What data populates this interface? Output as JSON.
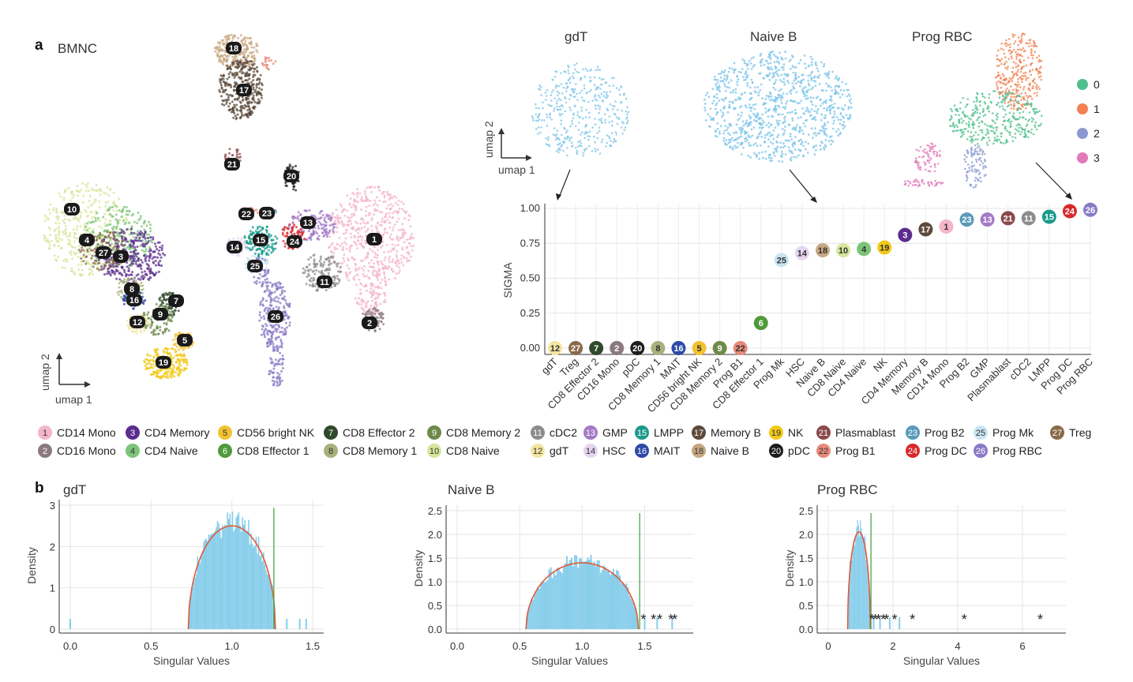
{
  "panel_a": {
    "label": "a",
    "title": "BMNC",
    "axis_x": "umap 1",
    "axis_y": "umap 2",
    "cluster_numbers_on_umap": [
      "18",
      "17",
      "21",
      "20",
      "22",
      "23",
      "10",
      "4",
      "27",
      "3",
      "13",
      "1",
      "15",
      "24",
      "14",
      "25",
      "11",
      "8",
      "16",
      "7",
      "9",
      "12",
      "5",
      "26",
      "2",
      "19"
    ],
    "small_umaps": [
      {
        "title": "gdT"
      },
      {
        "title": "Naive B"
      },
      {
        "title": "Prog RBC"
      }
    ],
    "small_axis_x": "umap 1",
    "small_axis_y": "umap 2",
    "prog_rbc_legend": [
      {
        "label": "0",
        "color": "#4fbf8f"
      },
      {
        "label": "1",
        "color": "#f28050"
      },
      {
        "label": "2",
        "color": "#8a9ad0"
      },
      {
        "label": "3",
        "color": "#e07ab8"
      }
    ]
  },
  "colors": {
    "1": "#f4b6c8",
    "2": "#8a7a80",
    "3": "#5b2d8e",
    "4": "#7cc47a",
    "5": "#f2c230",
    "6": "#4f9a3a",
    "7": "#2f4a2a",
    "8": "#a9b07a",
    "9": "#6e8a4a",
    "10": "#d6e69a",
    "11": "#8c8c8c",
    "12": "#f2e5a0",
    "13": "#a37ac6",
    "14": "#e5d5f0",
    "15": "#1a9a8a",
    "16": "#2c4aa8",
    "17": "#5c4a3a",
    "18": "#c8a882",
    "19": "#f2c818",
    "20": "#1c1c1c",
    "21": "#8a4a4a",
    "22": "#e88a7a",
    "23": "#5a9aba",
    "24": "#d82a2a",
    "25": "#c8e4f2",
    "26": "#8a7ac6",
    "27": "#8a6a4a"
  },
  "legend": [
    {
      "num": "1",
      "label": "CD14 Mono"
    },
    {
      "num": "3",
      "label": "CD4 Memory"
    },
    {
      "num": "5",
      "label": "CD56 bright NK"
    },
    {
      "num": "7",
      "label": "CD8 Effector 2"
    },
    {
      "num": "9",
      "label": "CD8 Memory 2"
    },
    {
      "num": "11",
      "label": "cDC2"
    },
    {
      "num": "13",
      "label": "GMP"
    },
    {
      "num": "15",
      "label": "LMPP"
    },
    {
      "num": "17",
      "label": "Memory B"
    },
    {
      "num": "19",
      "label": "NK"
    },
    {
      "num": "21",
      "label": "Plasmablast"
    },
    {
      "num": "23",
      "label": "Prog B2"
    },
    {
      "num": "25",
      "label": "Prog Mk"
    },
    {
      "num": "27",
      "label": "Treg"
    },
    {
      "num": "2",
      "label": "CD16 Mono"
    },
    {
      "num": "4",
      "label": "CD4 Naive"
    },
    {
      "num": "6",
      "label": "CD8 Effector 1"
    },
    {
      "num": "8",
      "label": "CD8 Memory 1"
    },
    {
      "num": "10",
      "label": "CD8 Naive"
    },
    {
      "num": "12",
      "label": "gdT"
    },
    {
      "num": "14",
      "label": "HSC"
    },
    {
      "num": "16",
      "label": "MAIT"
    },
    {
      "num": "18",
      "label": "Naive B"
    },
    {
      "num": "20",
      "label": "pDC"
    },
    {
      "num": "22",
      "label": "Prog B1"
    },
    {
      "num": "24",
      "label": "Prog DC"
    },
    {
      "num": "26",
      "label": "Prog RBC"
    }
  ],
  "chart_data": [
    {
      "type": "scatter",
      "title": "",
      "xlabel": "",
      "ylabel": "SIGMA",
      "ylim": [
        0,
        1
      ],
      "yticks": [
        "0.00",
        "0.25",
        "0.50",
        "0.75",
        "1.00"
      ],
      "categories": [
        "gdT",
        "Treg",
        "CD8 Effector 2",
        "CD16 Mono",
        "pDC",
        "CD8 Memory 1",
        "MAIT",
        "CD56 bright NK",
        "CD8 Memory 2",
        "Prog B1",
        "CD8 Effector 1",
        "Prog Mk",
        "HSC",
        "Naive B",
        "CD8 Naive",
        "CD4 Naive",
        "NK",
        "CD4 Memory",
        "Memory B",
        "CD14 Mono",
        "Prog B2",
        "GMP",
        "Plasmablast",
        "cDC2",
        "LMPP",
        "Prog DC",
        "Prog RBC"
      ],
      "cluster_ids": [
        "12",
        "27",
        "7",
        "2",
        "20",
        "8",
        "16",
        "5",
        "9",
        "22",
        "6",
        "25",
        "14",
        "18",
        "10",
        "4",
        "19",
        "3",
        "17",
        "1",
        "23",
        "13",
        "21",
        "11",
        "15",
        "24",
        "26"
      ],
      "values": [
        0.0,
        0.0,
        0.0,
        0.0,
        0.0,
        0.0,
        0.0,
        0.0,
        0.0,
        0.0,
        0.18,
        0.63,
        0.68,
        0.7,
        0.7,
        0.71,
        0.72,
        0.81,
        0.85,
        0.87,
        0.92,
        0.92,
        0.93,
        0.93,
        0.94,
        0.98,
        0.99
      ]
    },
    {
      "type": "histogram",
      "panel_label": "b",
      "title": "gdT",
      "xlabel": "Singular Values",
      "ylabel": "Density",
      "xlim": [
        0,
        1.5
      ],
      "ylim": [
        0,
        3
      ],
      "xticks": [
        "0.0",
        "0.5",
        "1.0",
        "1.5"
      ],
      "yticks": [
        "0",
        "1",
        "2",
        "3"
      ],
      "mp_bounds": [
        0.73,
        1.27
      ],
      "threshold": 1.26,
      "stars": [],
      "outliers": [
        0.0,
        1.34,
        1.42,
        1.46
      ]
    },
    {
      "type": "histogram",
      "title": "Naive B",
      "xlabel": "Singular Values",
      "ylabel": "Density",
      "xlim": [
        0,
        1.8
      ],
      "ylim": [
        0,
        2.5
      ],
      "xticks": [
        "0.0",
        "0.5",
        "1.0",
        "1.5"
      ],
      "yticks": [
        "0.0",
        "0.5",
        "1.0",
        "1.5",
        "2.0",
        "2.5"
      ],
      "mp_bounds": [
        0.55,
        1.45
      ],
      "threshold": 1.46,
      "stars": [
        1.49,
        1.57,
        1.62,
        1.71,
        1.74
      ],
      "outliers": [
        1.5,
        1.6,
        1.72
      ]
    },
    {
      "type": "histogram",
      "title": "Prog RBC",
      "xlabel": "Singular Values",
      "ylabel": "Density",
      "xlim": [
        0,
        7
      ],
      "ylim": [
        0,
        2.5
      ],
      "xticks": [
        "0",
        "2",
        "4",
        "6"
      ],
      "yticks": [
        "0.0",
        "0.5",
        "1.0",
        "1.5",
        "2.0",
        "2.5"
      ],
      "mp_bounds": [
        0.6,
        1.3
      ],
      "threshold": 1.32,
      "stars": [
        1.35,
        1.45,
        1.55,
        1.7,
        1.8,
        2.05,
        2.6,
        4.2,
        6.55
      ],
      "outliers": [
        1.4,
        1.6,
        1.9,
        2.2
      ]
    }
  ]
}
